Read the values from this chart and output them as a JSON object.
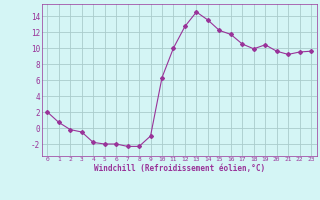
{
  "x": [
    0,
    1,
    2,
    3,
    4,
    5,
    6,
    7,
    8,
    9,
    10,
    11,
    12,
    13,
    14,
    15,
    16,
    17,
    18,
    19,
    20,
    21,
    22,
    23
  ],
  "y": [
    2,
    0.7,
    -0.2,
    -0.5,
    -1.8,
    -2.0,
    -2.0,
    -2.3,
    -2.3,
    -1.0,
    6.3,
    10.0,
    12.7,
    14.5,
    13.5,
    12.2,
    11.7,
    10.5,
    9.9,
    10.4,
    9.6,
    9.2,
    9.5,
    9.6
  ],
  "line_color": "#993399",
  "marker": "D",
  "marker_size": 2,
  "bg_color": "#d4f5f5",
  "grid_color": "#aacccc",
  "xlabel": "Windchill (Refroidissement éolien,°C)",
  "xlabel_color": "#993399",
  "tick_color": "#993399",
  "ylim": [
    -3.5,
    15.5
  ],
  "yticks": [
    -2,
    0,
    2,
    4,
    6,
    8,
    10,
    12,
    14
  ],
  "xlim": [
    -0.5,
    23.5
  ],
  "xticks": [
    0,
    1,
    2,
    3,
    4,
    5,
    6,
    7,
    8,
    9,
    10,
    11,
    12,
    13,
    14,
    15,
    16,
    17,
    18,
    19,
    20,
    21,
    22,
    23
  ]
}
